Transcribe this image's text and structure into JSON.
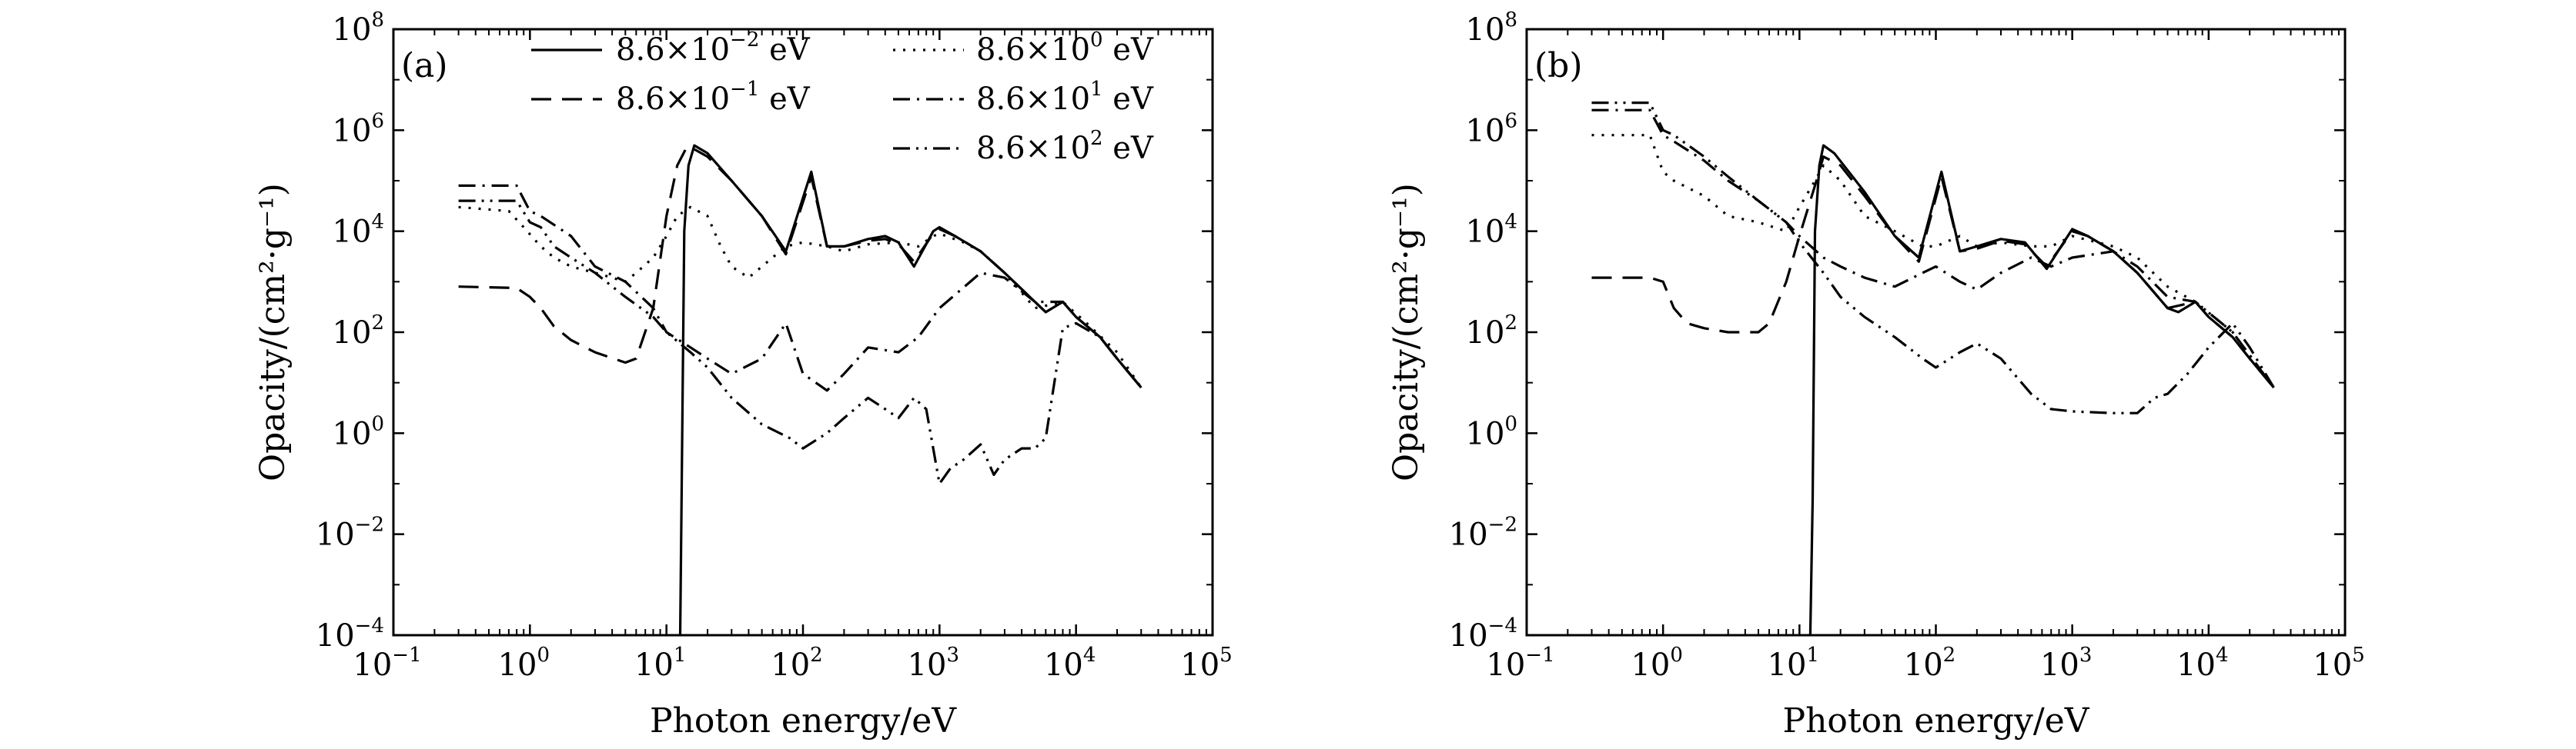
{
  "chart_data": [
    {
      "type": "line",
      "panel_label": "(a)",
      "xlabel": "Photon energy/eV",
      "ylabel": "Opacity/(cm²·g⁻¹)",
      "x_scale": "log",
      "y_scale": "log",
      "xlim": [
        0.1,
        100000
      ],
      "ylim": [
        0.0001,
        100000000
      ],
      "x_ticks": [
        {
          "value": 0.1,
          "base": "10",
          "exp": "−1"
        },
        {
          "value": 1,
          "base": "10",
          "exp": "0"
        },
        {
          "value": 10,
          "base": "10",
          "exp": "1"
        },
        {
          "value": 100,
          "base": "10",
          "exp": "2"
        },
        {
          "value": 1000,
          "base": "10",
          "exp": "3"
        },
        {
          "value": 10000,
          "base": "10",
          "exp": "4"
        },
        {
          "value": 100000,
          "base": "10",
          "exp": "5"
        }
      ],
      "y_ticks": [
        {
          "value": 0.0001,
          "base": "10",
          "exp": "−4"
        },
        {
          "value": 0.01,
          "base": "10",
          "exp": "−2"
        },
        {
          "value": 1,
          "base": "10",
          "exp": "0"
        },
        {
          "value": 100,
          "base": "10",
          "exp": "2"
        },
        {
          "value": 10000,
          "base": "10",
          "exp": "4"
        },
        {
          "value": 1000000,
          "base": "10",
          "exp": "6"
        },
        {
          "value": 100000000,
          "base": "10",
          "exp": "8"
        }
      ],
      "grid": false,
      "legend_position": "top",
      "series": [
        {
          "name": "8.6×10⁻² eV",
          "legend_mantissa": "8.6×10",
          "legend_exp": "−2",
          "legend_unit": " eV",
          "style": "solid",
          "x": [
            12.6,
            12.9,
            13.5,
            14.5,
            16,
            20,
            30,
            50,
            75,
            115,
            150,
            200,
            300,
            400,
            500,
            650,
            900,
            1000,
            1300,
            2000,
            3000,
            5000,
            6000,
            8000,
            10000,
            15000,
            20000,
            30000
          ],
          "y": [
            0.0001,
            0.05,
            10000,
            200000,
            500000,
            350000,
            100000,
            20000,
            4000,
            150000,
            5000,
            5000,
            7000,
            8000,
            6000,
            2000,
            10000,
            12000,
            8000,
            4000,
            1500,
            400,
            250,
            400,
            200,
            80,
            30,
            8
          ]
        },
        {
          "name": "8.6×10⁻¹ eV",
          "legend_mantissa": "8.6×10",
          "legend_exp": "−1",
          "legend_unit": " eV",
          "style": "dash",
          "x": [
            0.3,
            0.8,
            1.0,
            1.2,
            1.5,
            2.0,
            3.0,
            5.0,
            6.0,
            8.0,
            10,
            12,
            14,
            16,
            20,
            30,
            50,
            75,
            115,
            150,
            200,
            300,
            400,
            500,
            650,
            900,
            1000,
            1300,
            2000,
            3000,
            5000,
            6000,
            8000,
            10000,
            15000,
            20000,
            30000
          ],
          "y": [
            800,
            750,
            500,
            300,
            130,
            70,
            40,
            25,
            30,
            300,
            20000,
            200000,
            450000,
            420000,
            300000,
            100000,
            20000,
            3500,
            120000,
            5000,
            5000,
            6500,
            7000,
            5500,
            2500,
            9000,
            11000,
            8000,
            4000,
            1500,
            400,
            250,
            400,
            200,
            80,
            30,
            8
          ]
        },
        {
          "name": "8.6×10⁰ eV",
          "legend_mantissa": "8.6×10",
          "legend_exp": "0",
          "legend_unit": " eV",
          "style": "dot",
          "x": [
            0.3,
            0.7,
            0.9,
            1.2,
            1.5,
            2.0,
            3.0,
            4.0,
            5.0,
            6.0,
            8.0,
            10,
            12,
            15,
            20,
            25,
            30,
            40,
            50,
            75,
            100,
            150,
            200,
            300,
            500,
            700,
            900,
            1000,
            1500,
            2000,
            3000,
            5000,
            8000,
            12000,
            20000,
            30000
          ],
          "y": [
            30000,
            25000,
            12000,
            5000,
            3000,
            2000,
            1500,
            1200,
            1000,
            1500,
            3000,
            8000,
            20000,
            30000,
            20000,
            5000,
            2000,
            1200,
            2000,
            5000,
            6000,
            5000,
            4000,
            5500,
            6000,
            5000,
            8000,
            9000,
            6000,
            4000,
            1500,
            300,
            400,
            150,
            40,
            8
          ]
        },
        {
          "name": "8.6×10¹ eV",
          "legend_mantissa": "8.6×10",
          "legend_exp": "1",
          "legend_unit": " eV",
          "style": "dashdot",
          "x": [
            0.3,
            0.8,
            1.0,
            1.2,
            2.0,
            3.0,
            5.0,
            8.0,
            10,
            15,
            20,
            30,
            50,
            75,
            100,
            150,
            200,
            300,
            500,
            700,
            1000,
            2000,
            3000,
            5000,
            8000,
            10000,
            15000,
            20000,
            30000
          ],
          "y": [
            80000,
            80000,
            25000,
            20000,
            8000,
            2000,
            1000,
            300,
            100,
            50,
            30,
            15,
            30,
            150,
            15,
            7,
            15,
            50,
            40,
            80,
            300,
            1500,
            1200,
            400,
            400,
            200,
            80,
            30,
            8
          ]
        },
        {
          "name": "8.6×10² eV",
          "legend_mantissa": "8.6×10",
          "legend_exp": "2",
          "legend_unit": " eV",
          "style": "dashdotdot",
          "x": [
            0.3,
            0.8,
            1.0,
            1.2,
            1.5,
            2.0,
            3.0,
            5.0,
            8.0,
            10,
            15,
            20,
            30,
            50,
            80,
            100,
            150,
            200,
            300,
            400,
            500,
            650,
            800,
            1000,
            1200,
            1500,
            2000,
            2500,
            3000,
            4000,
            5000,
            6000,
            8000,
            10000,
            15000,
            20000,
            30000
          ],
          "y": [
            40000,
            40000,
            15000,
            12000,
            5000,
            3000,
            1500,
            500,
            200,
            100,
            40,
            20,
            5,
            1.5,
            0.8,
            0.5,
            1.0,
            2.0,
            5.0,
            3.0,
            2.0,
            5.0,
            3.0,
            0.1,
            0.2,
            0.3,
            0.6,
            0.15,
            0.3,
            0.5,
            0.5,
            0.8,
            120,
            150,
            80,
            30,
            8
          ]
        }
      ]
    },
    {
      "type": "line",
      "panel_label": "(b)",
      "xlabel": "Photon energy/eV",
      "ylabel": "Opacity/(cm²·g⁻¹)",
      "x_scale": "log",
      "y_scale": "log",
      "xlim": [
        0.1,
        100000
      ],
      "ylim": [
        0.0001,
        100000000
      ],
      "x_ticks": [
        {
          "value": 0.1,
          "base": "10",
          "exp": "−1"
        },
        {
          "value": 1,
          "base": "10",
          "exp": "0"
        },
        {
          "value": 10,
          "base": "10",
          "exp": "1"
        },
        {
          "value": 100,
          "base": "10",
          "exp": "2"
        },
        {
          "value": 1000,
          "base": "10",
          "exp": "3"
        },
        {
          "value": 10000,
          "base": "10",
          "exp": "4"
        },
        {
          "value": 100000,
          "base": "10",
          "exp": "5"
        }
      ],
      "y_ticks": [
        {
          "value": 0.0001,
          "base": "10",
          "exp": "−4"
        },
        {
          "value": 0.01,
          "base": "10",
          "exp": "−2"
        },
        {
          "value": 1,
          "base": "10",
          "exp": "0"
        },
        {
          "value": 100,
          "base": "10",
          "exp": "2"
        },
        {
          "value": 10000,
          "base": "10",
          "exp": "4"
        },
        {
          "value": 1000000,
          "base": "10",
          "exp": "6"
        },
        {
          "value": 100000000,
          "base": "10",
          "exp": "8"
        }
      ],
      "grid": false,
      "series": [
        {
          "style": "solid",
          "x": [
            12.0,
            12.5,
            13.0,
            14.0,
            15.0,
            18,
            30,
            50,
            75,
            110,
            150,
            200,
            300,
            450,
            650,
            1000,
            1300,
            2000,
            3000,
            5000,
            6000,
            8000,
            10000,
            15000,
            20000,
            30000
          ],
          "y": [
            0.0001,
            0.05,
            10000,
            200000,
            500000,
            350000,
            60000,
            8000,
            3000,
            150000,
            4000,
            5000,
            7000,
            6000,
            1800,
            11000,
            8000,
            4000,
            1500,
            300,
            250,
            400,
            200,
            80,
            30,
            8
          ]
        },
        {
          "style": "dash",
          "x": [
            0.3,
            0.8,
            1.0,
            1.2,
            1.5,
            2.0,
            3.0,
            5.0,
            6.0,
            8.0,
            10,
            13,
            15,
            20,
            30,
            50,
            75,
            110,
            150,
            200,
            300,
            450,
            650,
            1000,
            1300,
            2000,
            3000,
            5000,
            8000,
            10000,
            15000,
            20000,
            30000
          ],
          "y": [
            1200,
            1200,
            1000,
            300,
            150,
            120,
            100,
            100,
            150,
            1000,
            8000,
            80000,
            300000,
            200000,
            50000,
            8000,
            2500,
            120000,
            4000,
            4500,
            6500,
            5500,
            2000,
            10000,
            8000,
            4000,
            1500,
            300,
            400,
            200,
            80,
            30,
            8
          ]
        },
        {
          "style": "dot",
          "x": [
            0.3,
            0.8,
            1.0,
            1.2,
            2.0,
            3.0,
            5.0,
            8.0,
            10,
            13,
            15,
            20,
            30,
            50,
            80,
            100,
            150,
            200,
            300,
            500,
            700,
            1000,
            2000,
            3000,
            5000,
            8000,
            15000,
            30000
          ],
          "y": [
            800000,
            800000,
            150000,
            100000,
            50000,
            20000,
            15000,
            10000,
            30000,
            100000,
            200000,
            100000,
            20000,
            10000,
            5000,
            5000,
            8000,
            5000,
            6000,
            5000,
            5000,
            8000,
            5000,
            3000,
            800,
            400,
            100,
            8
          ]
        },
        {
          "style": "dashdot",
          "x": [
            0.3,
            0.8,
            1.0,
            1.2,
            2.0,
            3.0,
            5.0,
            8.0,
            10,
            15,
            20,
            30,
            50,
            80,
            100,
            150,
            200,
            300,
            500,
            700,
            1000,
            2000,
            3000,
            5000,
            8000,
            15000,
            30000
          ],
          "y": [
            2500000,
            2500000,
            800000,
            600000,
            250000,
            100000,
            40000,
            15000,
            8000,
            3000,
            2000,
            1200,
            800,
            1500,
            2000,
            1000,
            700,
            1500,
            3000,
            2000,
            3000,
            4000,
            2000,
            500,
            400,
            100,
            8
          ]
        },
        {
          "style": "dashdotdot",
          "x": [
            0.3,
            0.8,
            1.0,
            1.2,
            2.0,
            3.0,
            5.0,
            8.0,
            10,
            15,
            20,
            30,
            50,
            80,
            100,
            150,
            200,
            300,
            500,
            700,
            1000,
            2000,
            3000,
            4000,
            5000,
            7000,
            10000,
            15000,
            20000,
            30000
          ],
          "y": [
            3500000,
            3500000,
            1000000,
            800000,
            300000,
            120000,
            40000,
            15000,
            6000,
            1500,
            500,
            200,
            80,
            30,
            20,
            40,
            60,
            30,
            6,
            3,
            2.7,
            2.5,
            2.5,
            5,
            6,
            15,
            50,
            150,
            50,
            8
          ]
        }
      ]
    }
  ]
}
